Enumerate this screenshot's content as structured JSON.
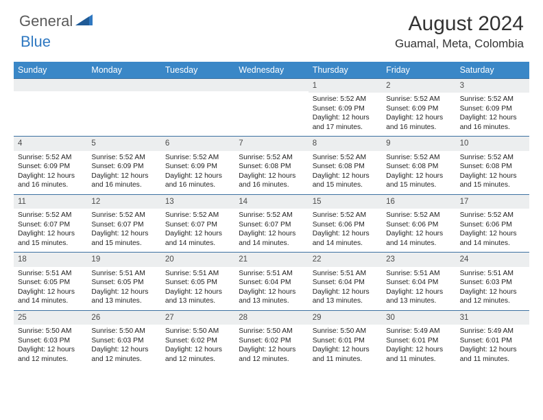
{
  "logo": {
    "text1": "General",
    "text2": "Blue"
  },
  "title": "August 2024",
  "location": "Guamal, Meta, Colombia",
  "colors": {
    "header_bg": "#3a87c7",
    "header_text": "#ffffff",
    "daynum_bg": "#eceeef",
    "week_border": "#3a6fa0",
    "logo_gray": "#5a5a5a",
    "logo_blue": "#2f78c1"
  },
  "days_of_week": [
    "Sunday",
    "Monday",
    "Tuesday",
    "Wednesday",
    "Thursday",
    "Friday",
    "Saturday"
  ],
  "weeks": [
    [
      {
        "n": "",
        "lines": []
      },
      {
        "n": "",
        "lines": []
      },
      {
        "n": "",
        "lines": []
      },
      {
        "n": "",
        "lines": []
      },
      {
        "n": "1",
        "lines": [
          "Sunrise: 5:52 AM",
          "Sunset: 6:09 PM",
          "Daylight: 12 hours",
          "and 17 minutes."
        ]
      },
      {
        "n": "2",
        "lines": [
          "Sunrise: 5:52 AM",
          "Sunset: 6:09 PM",
          "Daylight: 12 hours",
          "and 16 minutes."
        ]
      },
      {
        "n": "3",
        "lines": [
          "Sunrise: 5:52 AM",
          "Sunset: 6:09 PM",
          "Daylight: 12 hours",
          "and 16 minutes."
        ]
      }
    ],
    [
      {
        "n": "4",
        "lines": [
          "Sunrise: 5:52 AM",
          "Sunset: 6:09 PM",
          "Daylight: 12 hours",
          "and 16 minutes."
        ]
      },
      {
        "n": "5",
        "lines": [
          "Sunrise: 5:52 AM",
          "Sunset: 6:09 PM",
          "Daylight: 12 hours",
          "and 16 minutes."
        ]
      },
      {
        "n": "6",
        "lines": [
          "Sunrise: 5:52 AM",
          "Sunset: 6:09 PM",
          "Daylight: 12 hours",
          "and 16 minutes."
        ]
      },
      {
        "n": "7",
        "lines": [
          "Sunrise: 5:52 AM",
          "Sunset: 6:08 PM",
          "Daylight: 12 hours",
          "and 16 minutes."
        ]
      },
      {
        "n": "8",
        "lines": [
          "Sunrise: 5:52 AM",
          "Sunset: 6:08 PM",
          "Daylight: 12 hours",
          "and 15 minutes."
        ]
      },
      {
        "n": "9",
        "lines": [
          "Sunrise: 5:52 AM",
          "Sunset: 6:08 PM",
          "Daylight: 12 hours",
          "and 15 minutes."
        ]
      },
      {
        "n": "10",
        "lines": [
          "Sunrise: 5:52 AM",
          "Sunset: 6:08 PM",
          "Daylight: 12 hours",
          "and 15 minutes."
        ]
      }
    ],
    [
      {
        "n": "11",
        "lines": [
          "Sunrise: 5:52 AM",
          "Sunset: 6:07 PM",
          "Daylight: 12 hours",
          "and 15 minutes."
        ]
      },
      {
        "n": "12",
        "lines": [
          "Sunrise: 5:52 AM",
          "Sunset: 6:07 PM",
          "Daylight: 12 hours",
          "and 15 minutes."
        ]
      },
      {
        "n": "13",
        "lines": [
          "Sunrise: 5:52 AM",
          "Sunset: 6:07 PM",
          "Daylight: 12 hours",
          "and 14 minutes."
        ]
      },
      {
        "n": "14",
        "lines": [
          "Sunrise: 5:52 AM",
          "Sunset: 6:07 PM",
          "Daylight: 12 hours",
          "and 14 minutes."
        ]
      },
      {
        "n": "15",
        "lines": [
          "Sunrise: 5:52 AM",
          "Sunset: 6:06 PM",
          "Daylight: 12 hours",
          "and 14 minutes."
        ]
      },
      {
        "n": "16",
        "lines": [
          "Sunrise: 5:52 AM",
          "Sunset: 6:06 PM",
          "Daylight: 12 hours",
          "and 14 minutes."
        ]
      },
      {
        "n": "17",
        "lines": [
          "Sunrise: 5:52 AM",
          "Sunset: 6:06 PM",
          "Daylight: 12 hours",
          "and 14 minutes."
        ]
      }
    ],
    [
      {
        "n": "18",
        "lines": [
          "Sunrise: 5:51 AM",
          "Sunset: 6:05 PM",
          "Daylight: 12 hours",
          "and 14 minutes."
        ]
      },
      {
        "n": "19",
        "lines": [
          "Sunrise: 5:51 AM",
          "Sunset: 6:05 PM",
          "Daylight: 12 hours",
          "and 13 minutes."
        ]
      },
      {
        "n": "20",
        "lines": [
          "Sunrise: 5:51 AM",
          "Sunset: 6:05 PM",
          "Daylight: 12 hours",
          "and 13 minutes."
        ]
      },
      {
        "n": "21",
        "lines": [
          "Sunrise: 5:51 AM",
          "Sunset: 6:04 PM",
          "Daylight: 12 hours",
          "and 13 minutes."
        ]
      },
      {
        "n": "22",
        "lines": [
          "Sunrise: 5:51 AM",
          "Sunset: 6:04 PM",
          "Daylight: 12 hours",
          "and 13 minutes."
        ]
      },
      {
        "n": "23",
        "lines": [
          "Sunrise: 5:51 AM",
          "Sunset: 6:04 PM",
          "Daylight: 12 hours",
          "and 13 minutes."
        ]
      },
      {
        "n": "24",
        "lines": [
          "Sunrise: 5:51 AM",
          "Sunset: 6:03 PM",
          "Daylight: 12 hours",
          "and 12 minutes."
        ]
      }
    ],
    [
      {
        "n": "25",
        "lines": [
          "Sunrise: 5:50 AM",
          "Sunset: 6:03 PM",
          "Daylight: 12 hours",
          "and 12 minutes."
        ]
      },
      {
        "n": "26",
        "lines": [
          "Sunrise: 5:50 AM",
          "Sunset: 6:03 PM",
          "Daylight: 12 hours",
          "and 12 minutes."
        ]
      },
      {
        "n": "27",
        "lines": [
          "Sunrise: 5:50 AM",
          "Sunset: 6:02 PM",
          "Daylight: 12 hours",
          "and 12 minutes."
        ]
      },
      {
        "n": "28",
        "lines": [
          "Sunrise: 5:50 AM",
          "Sunset: 6:02 PM",
          "Daylight: 12 hours",
          "and 12 minutes."
        ]
      },
      {
        "n": "29",
        "lines": [
          "Sunrise: 5:50 AM",
          "Sunset: 6:01 PM",
          "Daylight: 12 hours",
          "and 11 minutes."
        ]
      },
      {
        "n": "30",
        "lines": [
          "Sunrise: 5:49 AM",
          "Sunset: 6:01 PM",
          "Daylight: 12 hours",
          "and 11 minutes."
        ]
      },
      {
        "n": "31",
        "lines": [
          "Sunrise: 5:49 AM",
          "Sunset: 6:01 PM",
          "Daylight: 12 hours",
          "and 11 minutes."
        ]
      }
    ]
  ]
}
